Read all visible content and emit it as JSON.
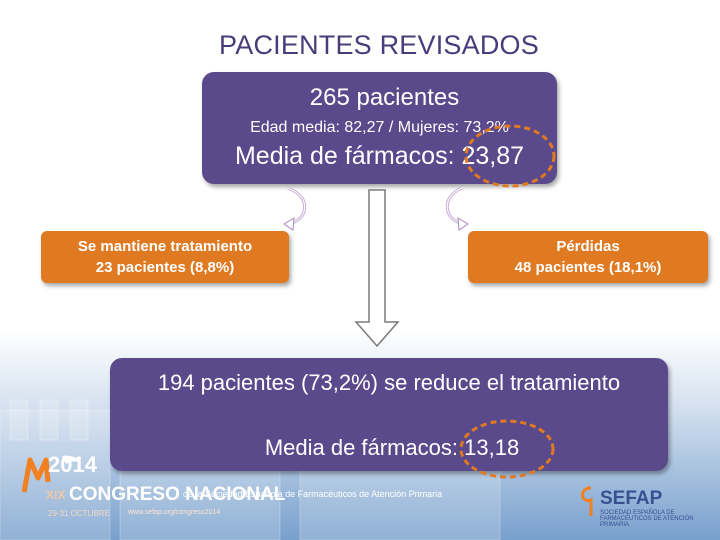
{
  "title": "PACIENTES REVISADOS",
  "top_box": {
    "patients": "265 pacientes",
    "demographics": "Edad media: 82,27  /   Mujeres: 73,2%",
    "mean_drugs": "Media de fármacos: 23,87"
  },
  "left_box": {
    "line1": "Se mantiene tratamiento",
    "line2": "23 pacientes (8,8%)"
  },
  "right_box": {
    "line1": "Pérdidas",
    "line2": "48 pacientes (18,1%)"
  },
  "bottom_box": {
    "line1": "194 pacientes (73,2%) se reduce el tratamiento",
    "line2": "Media de fármacos: 13,18"
  },
  "footer": {
    "year": "2014",
    "roman": "XIX",
    "congress": "CONGRESO NACIONAL",
    "society": "de la Sociedad Española de Farmacéuticos de Atención Primaria",
    "dates": "29-31 OCTUBRE",
    "web": "www.sefap.org/congreso2014",
    "brand": "SEFAP",
    "brand_sub": "SOCIEDAD ESPAÑOLA DE FARMACÉUTICOS DE ATENCIÓN PRIMARIA"
  },
  "colors": {
    "purple_box": "#5b4a8b",
    "orange_box": "#e07a22",
    "highlight_circle": "#e07a22",
    "title": "#4a3b7a"
  }
}
